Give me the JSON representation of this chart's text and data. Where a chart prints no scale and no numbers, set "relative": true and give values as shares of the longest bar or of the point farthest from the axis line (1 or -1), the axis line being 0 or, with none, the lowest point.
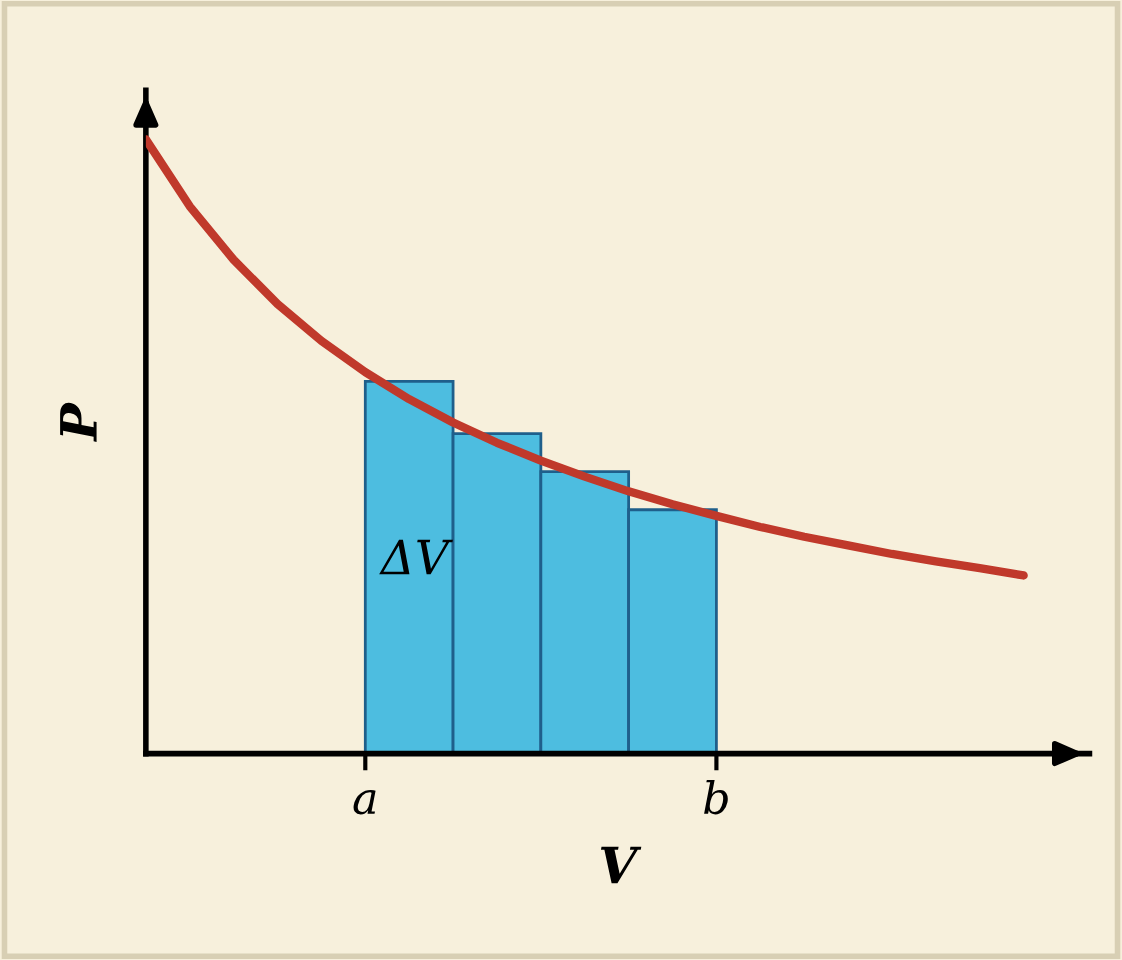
{
  "chart_data": {
    "type": "bar",
    "relative": true,
    "xlabel": "V",
    "ylabel": "P",
    "tick_labels": "x",
    "categories": [
      null,
      null,
      null,
      null,
      null,
      "a",
      null,
      null,
      null,
      null,
      null,
      null,
      null,
      "b",
      null,
      null,
      null,
      null,
      null,
      null,
      null,
      null
    ],
    "series": [
      {
        "color": "#4dbde0",
        "values": [
          null,
          null,
          null,
          null,
          null,
          null,
          0.606,
          null,
          0.521,
          null,
          0.459,
          null,
          0.397,
          null,
          null,
          null,
          null,
          null,
          null,
          null,
          null,
          null
        ]
      },
      {
        "type": "line",
        "color": "#c0392b",
        "values": [
          1.0,
          0.891,
          0.804,
          0.732,
          0.672,
          0.621,
          0.577,
          0.539,
          0.506,
          0.477,
          0.451,
          0.427,
          0.406,
          0.387,
          0.369,
          0.353,
          0.339,
          0.325,
          0.313,
          0.302,
          0.29,
          null
        ]
      }
    ],
    "annotations": [
      "ΔV"
    ]
  }
}
